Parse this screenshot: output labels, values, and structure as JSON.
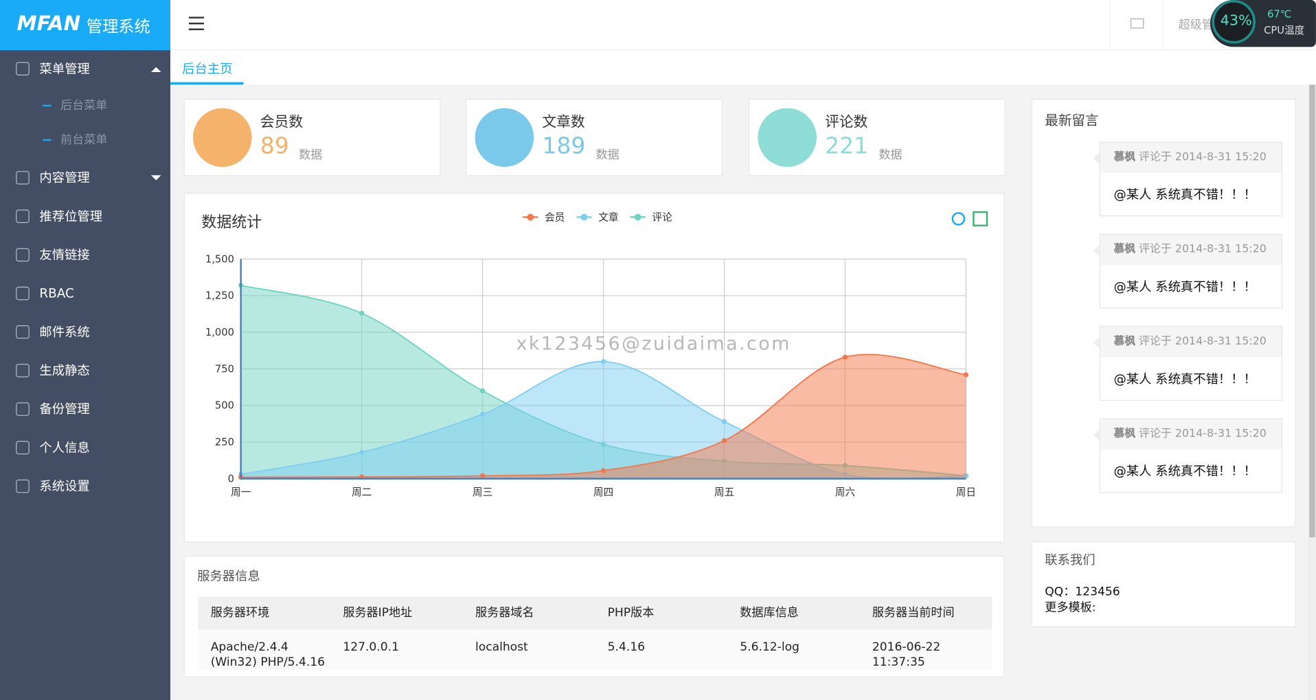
{
  "header": {
    "logo": "MFAN",
    "logo_sub": "管理系统",
    "user": "超级管",
    "cpu_percent": "43%",
    "cpu_temp": "67℃",
    "cpu_label": "CPU温度"
  },
  "sidebar": [
    {
      "label": "菜单管理",
      "children": [
        "后台菜单",
        "前台菜单"
      ]
    },
    {
      "label": "内容管理"
    },
    {
      "label": "推荐位管理"
    },
    {
      "label": "友情链接"
    },
    {
      "label": "RBAC"
    },
    {
      "label": "邮件系统"
    },
    {
      "label": "生成静态"
    },
    {
      "label": "备份管理"
    },
    {
      "label": "个人信息"
    },
    {
      "label": "系统设置"
    }
  ],
  "tab": "后台主页",
  "stats": [
    {
      "title": "会员数",
      "value": "89",
      "note": "数据"
    },
    {
      "title": "文章数",
      "value": "189",
      "note": "数据"
    },
    {
      "title": "评论数",
      "value": "221",
      "note": "数据"
    }
  ],
  "chart_data": {
    "type": "area",
    "title": "数据统计",
    "watermark": "xk123456@zuidaima.com",
    "categories": [
      "周一",
      "周二",
      "周三",
      "周四",
      "周五",
      "周六",
      "周日"
    ],
    "series": [
      {
        "name": "评论",
        "color": "#6fd3c1",
        "values": [
          1320,
          1130,
          600,
          235,
          120,
          90,
          20
        ]
      },
      {
        "name": "文章",
        "color": "#7ecef4",
        "values": [
          30,
          180,
          440,
          800,
          390,
          30,
          20
        ]
      },
      {
        "name": "会员",
        "color": "#f4774a",
        "values": [
          10,
          12,
          20,
          55,
          260,
          830,
          710
        ]
      }
    ],
    "ylim": [
      0,
      1500
    ],
    "yticks": [
      0,
      250,
      500,
      750,
      {
        "value": 1000,
        "label": "1,000"
      },
      {
        "value": 1250,
        "label": "1,250"
      },
      {
        "value": 1500,
        "label": "1,500"
      }
    ],
    "grid": true
  },
  "server": {
    "title": "服务器信息",
    "headers": [
      "服务器环境",
      "服务器IP地址",
      "服务器域名",
      "PHP版本",
      "数据库信息",
      "服务器当前时间"
    ],
    "row": [
      "Apache/2.4.4 (Win32) PHP/5.4.16",
      "127.0.0.1",
      "localhost",
      "5.4.16",
      "5.6.12-log",
      "2016-06-22 11:37:35"
    ]
  },
  "messages": {
    "title": "最新留言",
    "items": [
      {
        "author": "慕枫",
        "meta": "评论于 2014-8-31 15:20",
        "text": "@某人 系统真不错！！！"
      },
      {
        "author": "慕枫",
        "meta": "评论于 2014-8-31 15:20",
        "text": "@某人 系统真不错！！！"
      },
      {
        "author": "慕枫",
        "meta": "评论于 2014-8-31 15:20",
        "text": "@某人 系统真不错！！！"
      },
      {
        "author": "慕枫",
        "meta": "评论于 2014-8-31 15:20",
        "text": "@某人 系统真不错！！！"
      }
    ]
  },
  "contact": {
    "title": "联系我们",
    "qq": "QQ：123456",
    "more": "更多模板:"
  }
}
